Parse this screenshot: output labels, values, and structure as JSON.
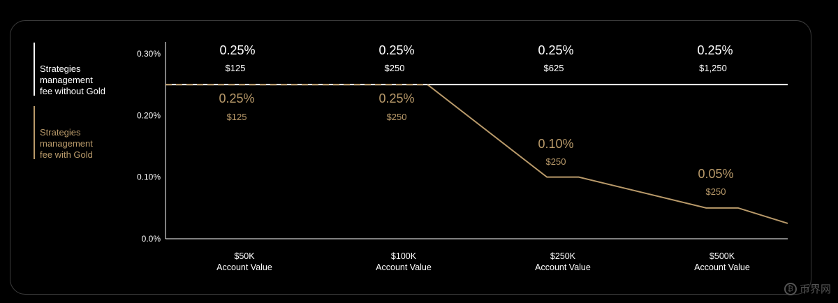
{
  "colors": {
    "white_series": "#ffffff",
    "gold_series": "#b99a6a",
    "axis": "#ffffff",
    "text": "#ffffff"
  },
  "legend": [
    {
      "label": "Strategies\nmanagement\nfee without Gold",
      "color": "#ffffff"
    },
    {
      "label": "Strategies\nmanagement\nfee with Gold",
      "color": "#b99a6a"
    }
  ],
  "watermark": {
    "icon": "bitcoin-circle-icon",
    "text": "币界网"
  },
  "chart_data": {
    "type": "line",
    "title": "",
    "xlabel": "",
    "ylabel": "",
    "ylim": [
      0,
      0.3
    ],
    "y_ticks": [
      "0.0%",
      "0.10%",
      "0.20%",
      "0.30%"
    ],
    "y_tick_values": [
      0,
      0.1,
      0.2,
      0.3
    ],
    "categories": [
      "$50K\nAccount Value",
      "$100K\nAccount Value",
      "$250K\nAccount Value",
      "$500K\nAccount Value"
    ],
    "series": [
      {
        "name": "Strategies management fee without Gold",
        "color": "#ffffff",
        "style": "solid",
        "points": [
          [
            0,
            0.25
          ],
          [
            4,
            0.25
          ]
        ],
        "labels": [
          {
            "pct": "0.25%",
            "amount": "$125"
          },
          {
            "pct": "0.25%",
            "amount": "$250"
          },
          {
            "pct": "0.25%",
            "amount": "$625"
          },
          {
            "pct": "0.25%",
            "amount": "$1,250"
          }
        ]
      },
      {
        "name": "Strategies management fee with Gold",
        "color": "#b99a6a",
        "style": "dashed-then-solid",
        "points": [
          [
            0,
            0.25
          ],
          [
            1.15,
            0.25
          ],
          [
            1.9,
            0.1
          ],
          [
            2.1,
            0.1
          ],
          [
            2.9,
            0.05
          ],
          [
            3.1,
            0.05
          ],
          [
            3.5,
            0.025
          ]
        ],
        "labels": [
          {
            "pct": "0.25%",
            "amount": "$125"
          },
          {
            "pct": "0.25%",
            "amount": "$250"
          },
          {
            "pct": "0.10%",
            "amount": "$250"
          },
          {
            "pct": "0.05%",
            "amount": "$250"
          }
        ]
      }
    ]
  }
}
